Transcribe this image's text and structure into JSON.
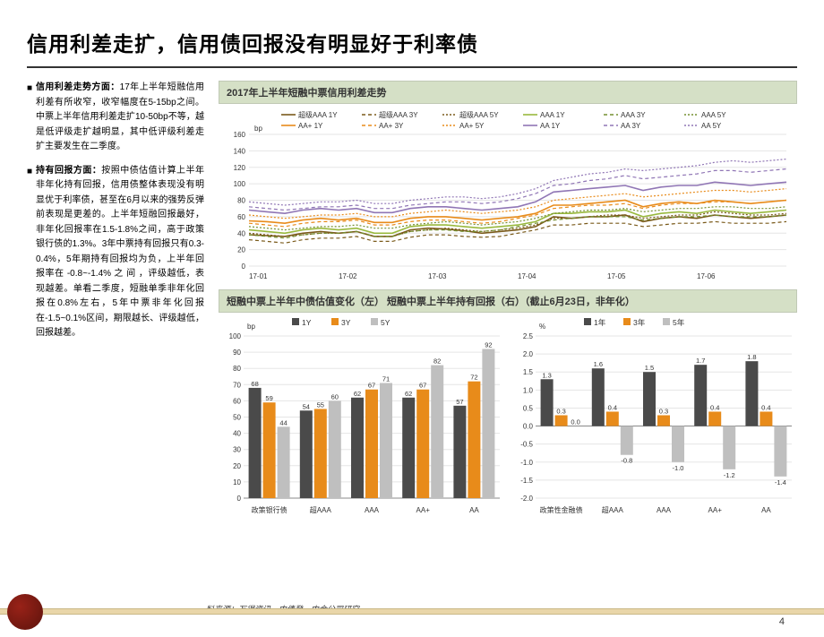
{
  "title": "信用利差走扩，信用债回报没有明显好于利率债",
  "bullets": [
    {
      "head": "信用利差走势方面：",
      "body": "17年上半年短融信用利差有所收窄，收窄幅度在5-15bp之间。中票上半年信用利差走扩10-50bp不等，越是低评级走扩越明显，其中低评级利差走扩主要发生在二季度。"
    },
    {
      "head": "持有回报方面：",
      "body": "按照中债估值计算上半年非年化持有回报，信用债整体表现没有明显优于利率债，甚至在6月以来的强势反弹前表现是更差的。上半年短融回报最好，非年化回报率在1.5-1.8%之间，高于政策银行债的1.3%。3年中票持有回报只有0.3-0.4%，5年期持有回报均为负，上半年回报率在 -0.8~-1.4% 之 间 ，评级越低，表现越差。单看二季度，短融单季非年化回报在0.8%左右，5年中票非年化回报在-1.5~0.1%区间，期限越长、评级越低，回报越差。"
    }
  ],
  "chart1": {
    "title": "2017年上半年短融中票信用利差走势",
    "unit": "bp",
    "ylim": [
      0,
      160
    ],
    "ytick_step": 20,
    "x_labels": [
      "17-01",
      "17-02",
      "17-03",
      "17-04",
      "17-05",
      "17-06"
    ],
    "background_color": "#ffffff",
    "grid_color": "#e5e5e5",
    "series": [
      {
        "name": "超级AAA 1Y",
        "color": "#7a5a1a",
        "dash": false,
        "data": [
          38,
          37,
          36,
          40,
          42,
          40,
          42,
          36,
          36,
          44,
          46,
          45,
          43,
          40,
          42,
          44,
          48,
          60,
          58,
          60,
          60,
          62,
          54,
          58,
          60,
          58,
          62,
          60,
          58,
          60,
          62
        ],
        "width": 1.6
      },
      {
        "name": "超级AAA 3Y",
        "color": "#7a5a1a",
        "dash": true,
        "dashp": "4 3",
        "data": [
          32,
          30,
          28,
          32,
          34,
          34,
          36,
          30,
          30,
          35,
          38,
          38,
          36,
          35,
          36,
          40,
          44,
          50,
          50,
          52,
          52,
          52,
          48,
          50,
          52,
          52,
          54,
          52,
          52,
          52,
          54
        ],
        "width": 1.2
      },
      {
        "name": "超级AAA 5Y",
        "color": "#7a5a1a",
        "dash": true,
        "dashp": "2 2",
        "data": [
          40,
          38,
          36,
          38,
          40,
          40,
          42,
          36,
          36,
          42,
          44,
          46,
          44,
          42,
          44,
          46,
          50,
          58,
          58,
          60,
          62,
          62,
          58,
          60,
          62,
          62,
          66,
          64,
          62,
          62,
          64
        ],
        "width": 1.2
      },
      {
        "name": "AAA 1Y",
        "color": "#99b93e",
        "dash": false,
        "data": [
          44,
          42,
          40,
          44,
          46,
          44,
          46,
          40,
          40,
          48,
          50,
          50,
          48,
          46,
          48,
          50,
          54,
          64,
          64,
          66,
          66,
          68,
          60,
          64,
          66,
          64,
          68,
          66,
          64,
          66,
          68
        ],
        "width": 1.6
      },
      {
        "name": "AAA 3Y",
        "color": "#759030",
        "dash": true,
        "dashp": "4 3",
        "data": [
          38,
          36,
          34,
          38,
          40,
          40,
          42,
          36,
          36,
          42,
          44,
          44,
          42,
          42,
          44,
          48,
          52,
          56,
          58,
          60,
          60,
          60,
          56,
          58,
          60,
          60,
          62,
          60,
          60,
          60,
          62
        ],
        "width": 1.2
      },
      {
        "name": "AAA 5Y",
        "color": "#759030",
        "dash": true,
        "dashp": "2 2",
        "data": [
          48,
          46,
          44,
          46,
          48,
          48,
          50,
          46,
          46,
          50,
          52,
          54,
          52,
          50,
          52,
          54,
          58,
          64,
          66,
          68,
          68,
          70,
          66,
          68,
          70,
          70,
          72,
          72,
          70,
          70,
          72
        ],
        "width": 1.2
      },
      {
        "name": "AA+ 1Y",
        "color": "#e88b1a",
        "dash": false,
        "data": [
          55,
          54,
          52,
          56,
          58,
          56,
          58,
          53,
          53,
          58,
          60,
          60,
          58,
          56,
          58,
          60,
          64,
          74,
          74,
          76,
          78,
          80,
          72,
          76,
          78,
          76,
          80,
          78,
          76,
          78,
          80
        ],
        "width": 1.6
      },
      {
        "name": "AA+ 3Y",
        "color": "#e88b1a",
        "dash": true,
        "dashp": "4 3",
        "data": [
          52,
          50,
          48,
          52,
          54,
          54,
          56,
          50,
          50,
          54,
          56,
          56,
          54,
          52,
          54,
          58,
          62,
          70,
          72,
          74,
          74,
          76,
          70,
          74,
          76,
          76,
          78,
          78,
          76,
          78,
          80
        ],
        "width": 1.2
      },
      {
        "name": "AA+ 5Y",
        "color": "#e88b1a",
        "dash": true,
        "dashp": "2 2",
        "data": [
          62,
          60,
          58,
          60,
          62,
          62,
          64,
          60,
          60,
          64,
          66,
          68,
          66,
          64,
          66,
          68,
          72,
          80,
          82,
          84,
          86,
          88,
          84,
          86,
          88,
          90,
          92,
          92,
          90,
          92,
          94
        ],
        "width": 1.2
      },
      {
        "name": "AA 1Y",
        "color": "#9076b5",
        "dash": false,
        "data": [
          68,
          66,
          64,
          68,
          70,
          68,
          70,
          65,
          65,
          70,
          72,
          72,
          70,
          68,
          70,
          72,
          78,
          90,
          92,
          94,
          96,
          98,
          92,
          96,
          98,
          98,
          102,
          100,
          98,
          100,
          102
        ],
        "width": 1.6
      },
      {
        "name": "AA 3Y",
        "color": "#9076b5",
        "dash": true,
        "dashp": "4 3",
        "data": [
          72,
          70,
          68,
          70,
          72,
          72,
          74,
          70,
          70,
          74,
          76,
          78,
          78,
          76,
          78,
          82,
          88,
          98,
          100,
          104,
          106,
          110,
          106,
          108,
          110,
          112,
          116,
          116,
          114,
          116,
          118
        ],
        "width": 1.2
      },
      {
        "name": "AA 5Y",
        "color": "#9076b5",
        "dash": true,
        "dashp": "2 2",
        "data": [
          78,
          76,
          74,
          76,
          78,
          78,
          80,
          76,
          76,
          80,
          82,
          84,
          84,
          82,
          84,
          88,
          94,
          104,
          108,
          112,
          114,
          118,
          116,
          118,
          120,
          122,
          126,
          128,
          126,
          128,
          130
        ],
        "width": 1.2
      }
    ]
  },
  "chart2": {
    "title": "短融中票上半年中债估值变化（左）  短融中票上半年持有回报（右）（截止6月23日，非年化）",
    "left": {
      "unit": "bp",
      "ylim": [
        0,
        100
      ],
      "ytick_step": 10,
      "legend": [
        {
          "label": "1Y",
          "color": "#4a4a4a"
        },
        {
          "label": "3Y",
          "color": "#e88b1a"
        },
        {
          "label": "5Y",
          "color": "#bfbfbf"
        }
      ],
      "categories": [
        "政策银行债",
        "超AAA",
        "AAA",
        "AA+",
        "AA"
      ],
      "series": [
        {
          "color": "#4a4a4a",
          "values": [
            68,
            54,
            62,
            62,
            57
          ]
        },
        {
          "color": "#e88b1a",
          "values": [
            59,
            55,
            67,
            67,
            72
          ]
        },
        {
          "color": "#bfbfbf",
          "values": [
            44,
            60,
            71,
            82,
            92
          ]
        }
      ],
      "show_labels": true
    },
    "right": {
      "unit": "%",
      "ylim": [
        -2.0,
        2.5
      ],
      "ytick_step": 0.5,
      "legend": [
        {
          "label": "1年",
          "color": "#4a4a4a"
        },
        {
          "label": "3年",
          "color": "#e88b1a"
        },
        {
          "label": "5年",
          "color": "#bfbfbf"
        }
      ],
      "categories": [
        "政策性金融债",
        "超AAA",
        "AAA",
        "AA+",
        "AA"
      ],
      "series": [
        {
          "color": "#4a4a4a",
          "values": [
            1.3,
            1.6,
            1.5,
            1.7,
            1.8
          ]
        },
        {
          "color": "#e88b1a",
          "values": [
            0.3,
            0.4,
            0.3,
            0.4,
            0.4
          ]
        },
        {
          "color": "#bfbfbf",
          "values": [
            0.0,
            -0.8,
            -1.0,
            -1.2,
            -1.4
          ]
        }
      ],
      "show_labels": true
    }
  },
  "footer": {
    "source": "料来源：万得资讯，中债登，中金公司研究",
    "page": "4"
  }
}
